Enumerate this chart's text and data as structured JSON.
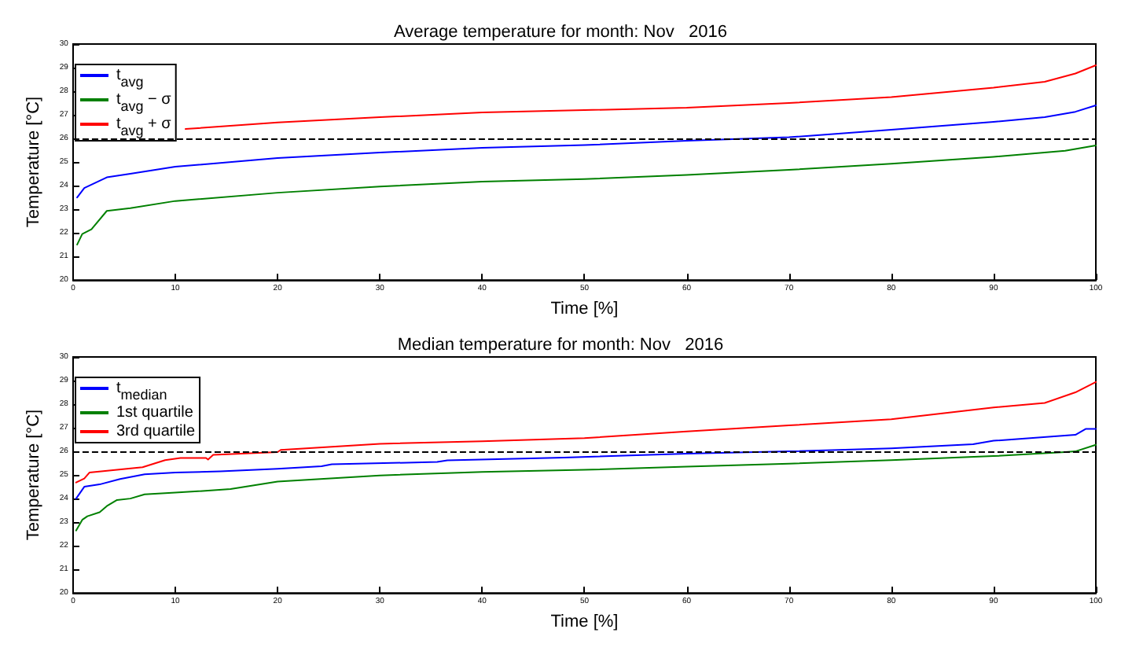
{
  "chart_data": [
    {
      "type": "line",
      "title": "Average temperature for month: Nov   2016",
      "xlabel": "Time [%]",
      "ylabel": "Temperature [°C]",
      "xlim": [
        0,
        100
      ],
      "xticks": [
        0,
        10,
        20,
        30,
        40,
        50,
        60,
        70,
        80,
        90,
        100
      ],
      "ylim": [
        20,
        30
      ],
      "yticks": [
        20,
        21,
        22,
        23,
        24,
        25,
        26,
        27,
        28,
        29,
        30
      ],
      "grid": false,
      "legend": "top left",
      "line_style": "solid",
      "marker": "none",
      "ref_lines": [
        {
          "axis": "y",
          "value": 26,
          "color": "#000000",
          "line_style": "dashed"
        }
      ],
      "series": [
        {
          "name": "t$_{avg}$",
          "color": "#0000ff",
          "x": [
            0.4,
            1.1,
            3.3,
            5.6,
            10,
            20,
            30,
            40,
            50,
            60,
            70,
            80,
            90,
            95,
            98,
            100
          ],
          "values": [
            23.5,
            23.9,
            24.35,
            24.5,
            24.8,
            25.17,
            25.4,
            25.6,
            25.72,
            25.9,
            26.05,
            26.37,
            26.7,
            26.9,
            27.13,
            27.4
          ]
        },
        {
          "name": "t$_{avg}$ − σ",
          "color": "#008000",
          "x": [
            0.4,
            0.9,
            1.8,
            3.3,
            5.6,
            10,
            20,
            30,
            40,
            50,
            60,
            70,
            80,
            90,
            97,
            100
          ],
          "values": [
            21.5,
            21.95,
            22.15,
            22.93,
            23.05,
            23.35,
            23.7,
            23.96,
            24.17,
            24.28,
            24.45,
            24.67,
            24.93,
            25.22,
            25.48,
            25.7
          ]
        },
        {
          "name": "t$_{avg}$ + σ",
          "color": "#ff0000",
          "x": [
            11,
            20,
            30,
            40,
            50,
            60,
            70,
            80,
            90,
            95,
            98,
            100
          ],
          "values": [
            26.4,
            26.68,
            26.9,
            27.1,
            27.2,
            27.3,
            27.5,
            27.75,
            28.15,
            28.4,
            28.75,
            29.1
          ]
        }
      ]
    },
    {
      "type": "line",
      "title": "Median temperature for month: Nov   2016",
      "xlabel": "Time [%]",
      "ylabel": "Temperature [°C]",
      "xlim": [
        0,
        100
      ],
      "xticks": [
        0,
        10,
        20,
        30,
        40,
        50,
        60,
        70,
        80,
        90,
        100
      ],
      "ylim": [
        20,
        30
      ],
      "yticks": [
        20,
        21,
        22,
        23,
        24,
        25,
        26,
        27,
        28,
        29,
        30
      ],
      "grid": false,
      "legend": "top left",
      "line_style": "solid",
      "marker": "none",
      "ref_lines": [
        {
          "axis": "y",
          "value": 26,
          "color": "#000000",
          "line_style": "dashed"
        }
      ],
      "series": [
        {
          "name": "t$_{median}$",
          "color": "#0000ff",
          "x": [
            0.3,
            1.1,
            2.6,
            4.6,
            7,
            10,
            14.4,
            20,
            24.3,
            25.3,
            35.6,
            36.6,
            48,
            60,
            70,
            80,
            88,
            90,
            98,
            99,
            100
          ],
          "values": [
            24.0,
            24.5,
            24.6,
            24.83,
            25.03,
            25.1,
            25.15,
            25.26,
            25.37,
            25.45,
            25.55,
            25.62,
            25.74,
            25.9,
            26.0,
            26.13,
            26.3,
            26.45,
            26.7,
            26.95,
            26.95
          ]
        },
        {
          "name": "1st quartile",
          "color": "#008000",
          "x": [
            0.3,
            0.9,
            1.4,
            2.6,
            3.3,
            4.3,
            5.6,
            7,
            10,
            15.4,
            20,
            30,
            40,
            50,
            60,
            70,
            80,
            90,
            97,
            98,
            100
          ],
          "values": [
            22.65,
            23.1,
            23.25,
            23.42,
            23.68,
            23.94,
            24.0,
            24.18,
            24.25,
            24.4,
            24.72,
            24.98,
            25.13,
            25.22,
            25.35,
            25.48,
            25.63,
            25.8,
            25.97,
            26.0,
            26.28
          ]
        },
        {
          "name": "3rd quartile",
          "color": "#ff0000",
          "x": [
            0.3,
            1.1,
            1.6,
            6.8,
            9,
            10.5,
            13,
            13.2,
            13.7,
            20,
            20.3,
            30,
            40,
            50,
            60,
            70,
            80,
            90,
            95,
            98,
            100
          ],
          "values": [
            24.68,
            24.85,
            25.1,
            25.33,
            25.63,
            25.72,
            25.72,
            25.65,
            25.85,
            25.97,
            26.06,
            26.32,
            26.43,
            26.56,
            26.84,
            27.1,
            27.36,
            27.86,
            28.05,
            28.5,
            28.94
          ]
        }
      ]
    }
  ]
}
